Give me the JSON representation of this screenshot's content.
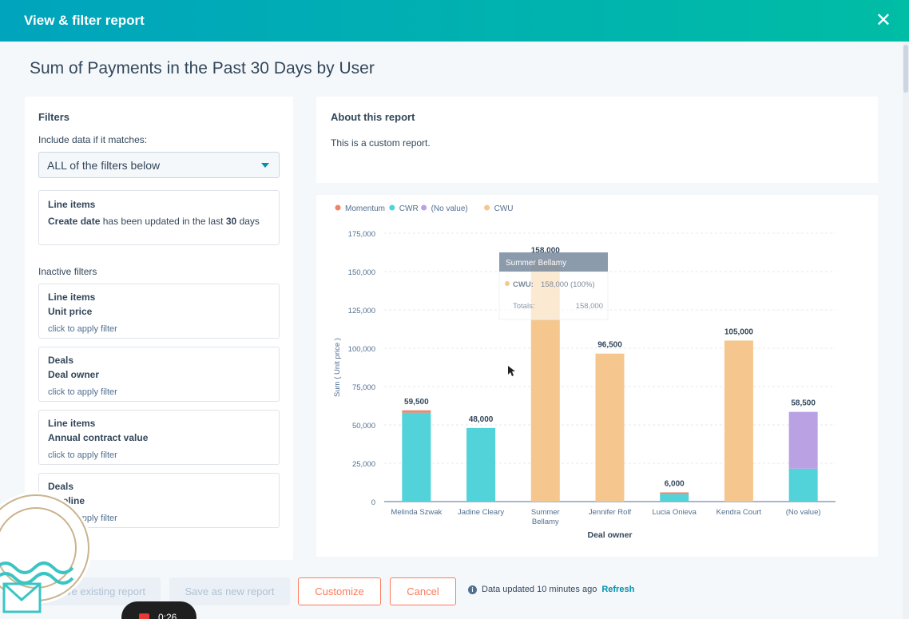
{
  "header": {
    "title": "View & filter report",
    "close_icon": "close-icon"
  },
  "report": {
    "title": "Sum of Payments in the Past 30 Days by User"
  },
  "filters": {
    "title": "Filters",
    "match_label": "Include data if it matches:",
    "match_value": "ALL of the filters below",
    "active": {
      "object": "Line items",
      "property": "Create date",
      "condition": "has been updated in the last",
      "value": "30",
      "unit": "days"
    },
    "inactive_label": "Inactive filters",
    "inactive": [
      {
        "object": "Line items",
        "property": "Unit price",
        "hint": "click to apply filter"
      },
      {
        "object": "Deals",
        "property": "Deal owner",
        "hint": "click to apply filter"
      },
      {
        "object": "Line items",
        "property": "Annual contract value",
        "hint": "click to apply filter"
      },
      {
        "object": "Deals",
        "property": "Pipeline",
        "hint": "click to apply filter"
      }
    ]
  },
  "about": {
    "title": "About this report",
    "text": "This is a custom report."
  },
  "chart_data": {
    "type": "bar",
    "stacked": true,
    "categories": [
      "Melinda Szwak",
      "Jadine Cleary",
      "Summer Bellamy",
      "Jennifer Rolf",
      "Lucia Onieva",
      "Kendra Court",
      "(No value)"
    ],
    "series": [
      {
        "name": "Momentum",
        "color": "#f2826a",
        "values": [
          1500,
          0,
          0,
          0,
          1000,
          0,
          0
        ]
      },
      {
        "name": "CWR",
        "color": "#51d3d9",
        "values": [
          58000,
          48000,
          0,
          0,
          5000,
          0,
          21500
        ]
      },
      {
        "name": "(No value)",
        "color": "#b9a1e4",
        "values": [
          0,
          0,
          0,
          0,
          0,
          0,
          37000
        ]
      },
      {
        "name": "CWU",
        "color": "#f5c78e",
        "values": [
          0,
          0,
          158000,
          96500,
          0,
          105000,
          0
        ]
      }
    ],
    "totals": [
      "59,500",
      "48,000",
      "158,000",
      "96,500",
      "6,000",
      "105,000",
      "58,500"
    ],
    "xlabel": "Deal owner",
    "ylabel": "Sum ( Unit price )",
    "ylim": [
      0,
      175000
    ],
    "yticks": [
      "0",
      "25,000",
      "50,000",
      "75,000",
      "100,000",
      "125,000",
      "150,000",
      "175,000"
    ],
    "grid": true,
    "legend_position": "top-left"
  },
  "tooltip": {
    "title": "Summer Bellamy",
    "series_label": "CWU:",
    "series_value": "158,000 (100%)",
    "totals_label": "Totals:",
    "totals_value": "158,000"
  },
  "actions": {
    "save_existing": "Save existing report",
    "save_new": "Save as new report",
    "customize": "Customize",
    "cancel": "Cancel",
    "status": "Data updated 10 minutes ago",
    "refresh": "Refresh"
  },
  "recording": {
    "time": "0:26"
  }
}
